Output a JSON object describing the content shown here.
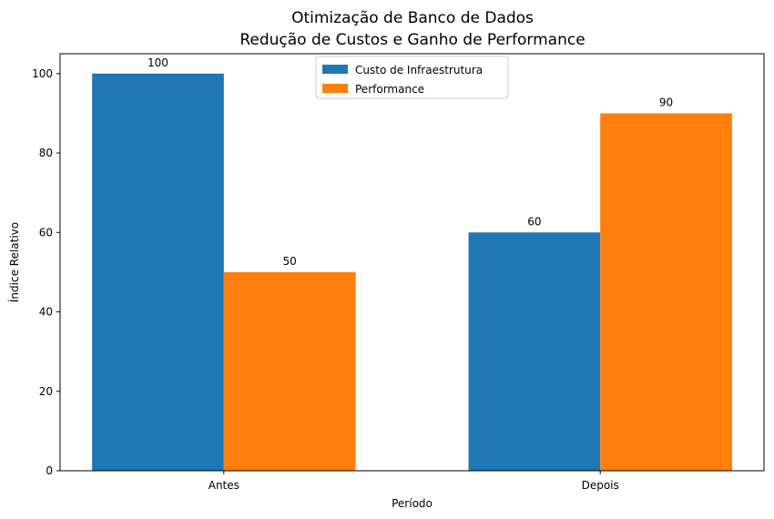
{
  "chart_data": {
    "type": "bar",
    "title": "Otimização de Banco de Dados",
    "subtitle": "Redução de Custos e Ganho de Performance",
    "xlabel": "Período",
    "ylabel": "Índice Relativo",
    "categories": [
      "Antes",
      "Depois"
    ],
    "series": [
      {
        "name": "Custo de Infraestrutura",
        "color": "#1f77b4",
        "values": [
          100,
          60
        ]
      },
      {
        "name": "Performance",
        "color": "#ff7f0e",
        "values": [
          50,
          90
        ]
      }
    ],
    "ylim": [
      0,
      105
    ],
    "yticks": [
      0,
      20,
      40,
      60,
      80,
      100
    ],
    "grid": false,
    "legend_position": "top-center",
    "data_labels": true
  }
}
